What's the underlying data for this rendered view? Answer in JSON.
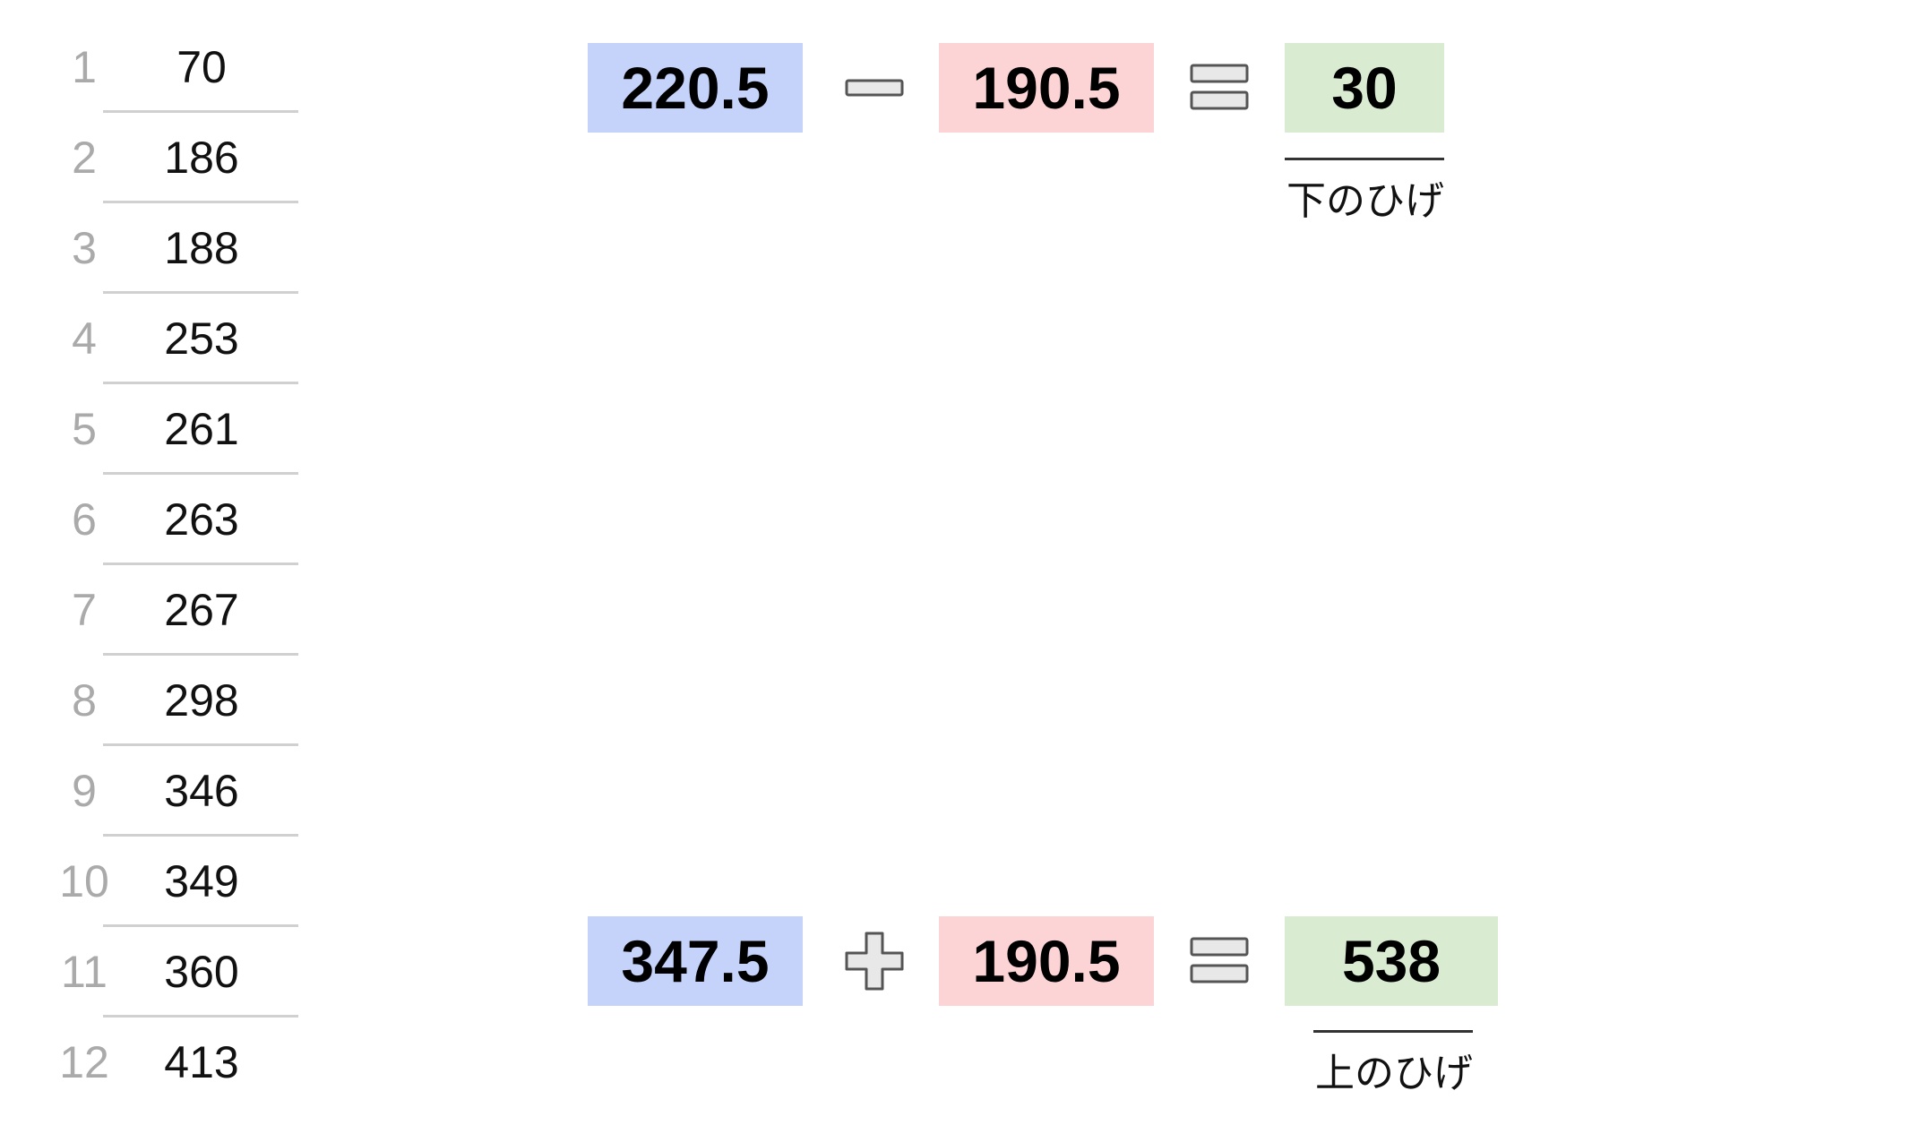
{
  "list": {
    "rows": [
      {
        "n": "1",
        "v": "70"
      },
      {
        "n": "2",
        "v": "186"
      },
      {
        "n": "3",
        "v": "188"
      },
      {
        "n": "4",
        "v": "253"
      },
      {
        "n": "5",
        "v": "261"
      },
      {
        "n": "6",
        "v": "263"
      },
      {
        "n": "7",
        "v": "267"
      },
      {
        "n": "8",
        "v": "298"
      },
      {
        "n": "9",
        "v": "346"
      },
      {
        "n": "10",
        "v": "349"
      },
      {
        "n": "11",
        "v": "360"
      },
      {
        "n": "12",
        "v": "413"
      }
    ]
  },
  "equation_top": {
    "left": "220.5",
    "operator": "minus",
    "right": "190.5",
    "result": "30",
    "caption": "下のひげ"
  },
  "equation_bottom": {
    "left": "347.5",
    "operator": "plus",
    "right": "190.5",
    "result": "538",
    "caption": "上のひげ"
  },
  "colors": {
    "blue_box": "#c5d3fb",
    "red_box": "#fdd4d6",
    "green_box": "#d9ecd2",
    "operator_fill": "#e8e8e8",
    "operator_stroke": "#555555"
  }
}
